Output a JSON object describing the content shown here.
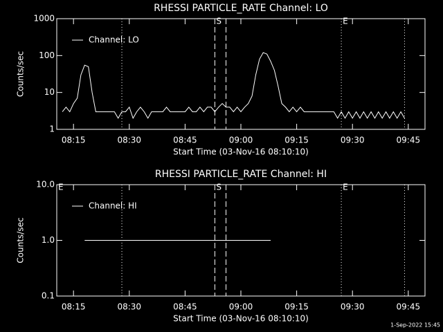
{
  "chart_data": [
    {
      "type": "line",
      "title": "RHESSI PARTICLE_RATE Channel: LO",
      "xlabel": "Start Time (03-Nov-16 08:10:10)",
      "ylabel": "Counts/sec",
      "log_y": true,
      "ylim": [
        1,
        1000
      ],
      "yticks": [
        1,
        10,
        100,
        1000
      ],
      "xlim": [
        "08:10:30",
        "09:49:30"
      ],
      "xticks": [
        "08:15",
        "08:30",
        "08:45",
        "09:00",
        "09:15",
        "09:30",
        "09:45"
      ],
      "legend": "upper left",
      "x": [
        "08:12",
        "08:13",
        "08:14",
        "08:15",
        "08:16",
        "08:17",
        "08:18",
        "08:19",
        "08:20",
        "08:21",
        "08:22",
        "08:23",
        "08:24",
        "08:25",
        "08:26",
        "08:27",
        "08:28",
        "08:29",
        "08:30",
        "08:31",
        "08:32",
        "08:33",
        "08:34",
        "08:35",
        "08:36",
        "08:37",
        "08:38",
        "08:39",
        "08:40",
        "08:41",
        "08:42",
        "08:43",
        "08:44",
        "08:45",
        "08:46",
        "08:47",
        "08:48",
        "08:49",
        "08:50",
        "08:51",
        "08:52",
        "08:53",
        "08:54",
        "08:55",
        "08:56",
        "08:57",
        "08:58",
        "08:59",
        "09:00",
        "09:01",
        "09:02",
        "09:03",
        "09:04",
        "09:05",
        "09:06",
        "09:07",
        "09:08",
        "09:09",
        "09:10",
        "09:11",
        "09:12",
        "09:13",
        "09:14",
        "09:15",
        "09:16",
        "09:17",
        "09:18",
        "09:19",
        "09:20",
        "09:21",
        "09:22",
        "09:23",
        "09:24",
        "09:25",
        "09:26",
        "09:27",
        "09:28",
        "09:29",
        "09:30",
        "09:31",
        "09:32",
        "09:33",
        "09:34",
        "09:35",
        "09:36",
        "09:37",
        "09:38",
        "09:39",
        "09:40",
        "09:41",
        "09:42",
        "09:43",
        "09:44"
      ],
      "series": [
        {
          "name": "Channel: LO",
          "color": "#ffffff",
          "values": [
            3,
            4,
            3,
            5,
            7,
            30,
            55,
            50,
            10,
            3,
            3,
            3,
            3,
            3,
            3,
            2,
            3,
            3,
            4,
            2,
            3,
            4,
            3,
            2,
            3,
            3,
            3,
            3,
            4,
            3,
            3,
            3,
            3,
            3,
            4,
            3,
            3,
            4,
            3,
            4,
            4,
            3,
            4,
            5,
            4,
            4,
            3,
            4,
            3,
            4,
            5,
            8,
            30,
            80,
            120,
            110,
            70,
            40,
            15,
            5,
            4,
            3,
            4,
            3,
            4,
            3,
            3,
            3,
            3,
            3,
            3,
            3,
            3,
            3,
            2,
            3,
            2,
            3,
            2,
            3,
            2,
            3,
            2,
            3,
            2,
            3,
            2,
            3,
            2,
            3,
            2,
            3,
            2
          ]
        }
      ],
      "vlines": [
        {
          "x": "08:28",
          "style": "dotted"
        },
        {
          "x": "08:53",
          "style": "dashed"
        },
        {
          "x": "08:56",
          "style": "dashed"
        },
        {
          "x": "09:27",
          "style": "dotted"
        },
        {
          "x": "09:44",
          "style": "dotted"
        }
      ],
      "annotations": [
        {
          "text": "S",
          "x": "08:53"
        },
        {
          "text": "E",
          "x": "09:27"
        }
      ]
    },
    {
      "type": "line",
      "title": "RHESSI PARTICLE_RATE Channel: HI",
      "xlabel": "Start Time (03-Nov-16 08:10:10)",
      "ylabel": "Counts/sec",
      "log_y": true,
      "ylim": [
        0.1,
        10
      ],
      "yticks": [
        0.1,
        {
          "value": 1,
          "label": "1.0"
        },
        {
          "value": 10,
          "label": "10.0"
        }
      ],
      "xlim": [
        "08:10:30",
        "09:49:30"
      ],
      "xticks": [
        "08:15",
        "08:30",
        "08:45",
        "09:00",
        "09:15",
        "09:30",
        "09:45"
      ],
      "legend": "upper left",
      "x": [
        "08:18",
        "09:08"
      ],
      "series": [
        {
          "name": "Channel: HI",
          "color": "#ffffff",
          "values": [
            1,
            1
          ]
        }
      ],
      "vlines": [
        {
          "x": "08:28",
          "style": "dotted"
        },
        {
          "x": "08:53",
          "style": "dashed"
        },
        {
          "x": "08:56",
          "style": "dashed"
        },
        {
          "x": "09:27",
          "style": "dotted"
        },
        {
          "x": "09:44",
          "style": "dotted"
        }
      ],
      "annotations": [
        {
          "text": "E",
          "x": "08:10:30"
        },
        {
          "text": "S",
          "x": "08:53"
        },
        {
          "text": "E",
          "x": "09:27"
        }
      ]
    }
  ],
  "footer": "1-Sep-2022 15:45"
}
